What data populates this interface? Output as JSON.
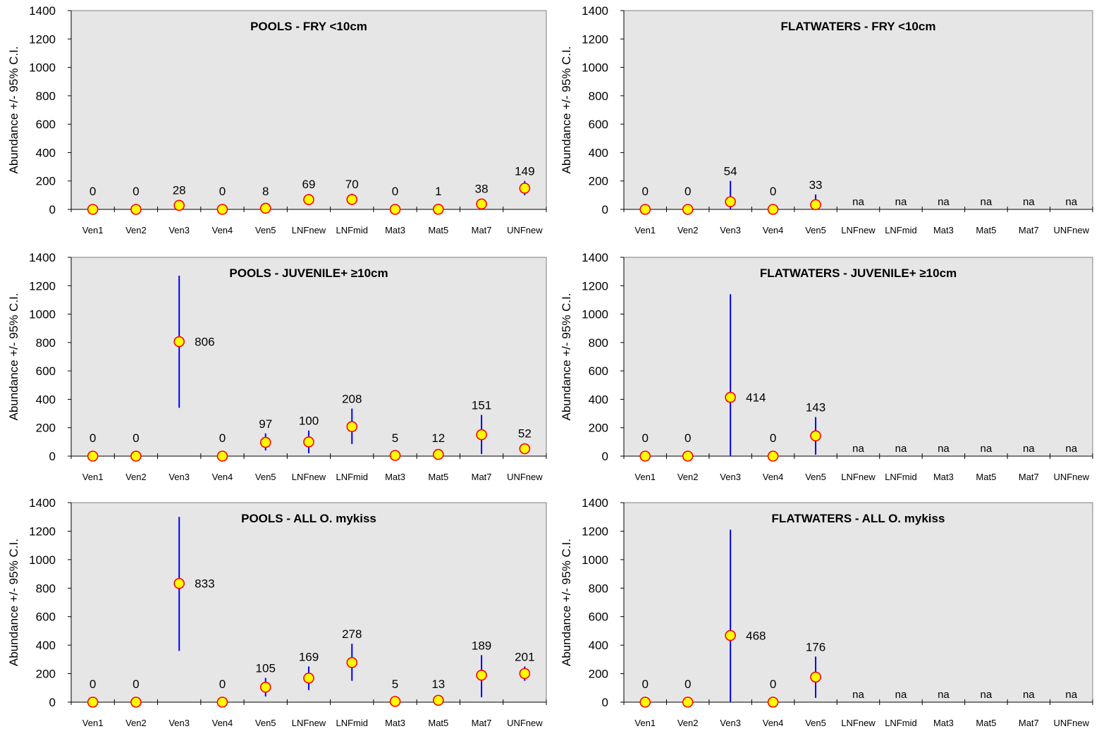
{
  "colors": {
    "plot_bg": "#e6e6e6",
    "error_bar": "#0000ff",
    "marker_fill": "#ffff00",
    "marker_edge": "#ff0000",
    "axis": "#000000"
  },
  "chart_data": [
    {
      "type": "scatter",
      "title": "POOLS - FRY <10cm",
      "ylabel": "Abundance +/- 95% C.I.",
      "ylim": [
        0,
        1400
      ],
      "yticks": [
        0,
        200,
        400,
        600,
        800,
        1000,
        1200,
        1400
      ],
      "categories": [
        "Ven1",
        "Ven2",
        "Ven3",
        "Ven4",
        "Ven5",
        "LNFnew",
        "LNFmid",
        "Mat3",
        "Mat5",
        "Mat7",
        "UNFnew"
      ],
      "values": [
        0,
        0,
        28,
        0,
        8,
        69,
        70,
        0,
        1,
        38,
        149
      ],
      "labels": [
        "0",
        "0",
        "28",
        "0",
        "8",
        "69",
        "70",
        "0",
        "1",
        "38",
        "149"
      ],
      "ci_low": [
        0,
        0,
        10,
        0,
        2,
        55,
        45,
        0,
        0,
        12,
        100
      ],
      "ci_high": [
        0,
        0,
        48,
        0,
        14,
        82,
        110,
        0,
        2,
        72,
        200
      ]
    },
    {
      "type": "scatter",
      "title": "FLATWATERS - FRY <10cm",
      "ylabel": "Abundance +/- 95% C.I.",
      "ylim": [
        0,
        1400
      ],
      "yticks": [
        0,
        200,
        400,
        600,
        800,
        1000,
        1200,
        1400
      ],
      "categories": [
        "Ven1",
        "Ven2",
        "Ven3",
        "Ven4",
        "Ven5",
        "LNFnew",
        "LNFmid",
        "Mat3",
        "Mat5",
        "Mat7",
        "UNFnew"
      ],
      "values": [
        0,
        0,
        54,
        0,
        33,
        null,
        null,
        null,
        null,
        null,
        null
      ],
      "labels": [
        "0",
        "0",
        "54",
        "0",
        "33",
        "na",
        "na",
        "na",
        "na",
        "na",
        "na"
      ],
      "ci_low": [
        0,
        0,
        0,
        0,
        0,
        null,
        null,
        null,
        null,
        null,
        null
      ],
      "ci_high": [
        0,
        0,
        200,
        0,
        105,
        null,
        null,
        null,
        null,
        null,
        null
      ]
    },
    {
      "type": "scatter",
      "title": "POOLS - JUVENILE+ ≥10cm",
      "ylabel": "Abundance +/- 95% C.I.",
      "ylim": [
        0,
        1400
      ],
      "yticks": [
        0,
        200,
        400,
        600,
        800,
        1000,
        1200,
        1400
      ],
      "categories": [
        "Ven1",
        "Ven2",
        "Ven3",
        "Ven4",
        "Ven5",
        "LNFnew",
        "LNFmid",
        "Mat3",
        "Mat5",
        "Mat7",
        "UNFnew"
      ],
      "values": [
        0,
        0,
        806,
        0,
        97,
        100,
        208,
        5,
        12,
        151,
        52
      ],
      "labels": [
        "0",
        "0",
        "806",
        "0",
        "97",
        "100",
        "208",
        "5",
        "12",
        "151",
        "52"
      ],
      "ci_low": [
        0,
        0,
        340,
        0,
        40,
        20,
        85,
        0,
        0,
        15,
        40
      ],
      "ci_high": [
        0,
        0,
        1270,
        0,
        160,
        180,
        335,
        12,
        25,
        290,
        65
      ]
    },
    {
      "type": "scatter",
      "title": "FLATWATERS - JUVENILE+ ≥10cm",
      "ylabel": "Abundance +/- 95% C.I.",
      "ylim": [
        0,
        1400
      ],
      "yticks": [
        0,
        200,
        400,
        600,
        800,
        1000,
        1200,
        1400
      ],
      "categories": [
        "Ven1",
        "Ven2",
        "Ven3",
        "Ven4",
        "Ven5",
        "LNFnew",
        "LNFmid",
        "Mat3",
        "Mat5",
        "Mat7",
        "UNFnew"
      ],
      "values": [
        0,
        0,
        414,
        0,
        143,
        null,
        null,
        null,
        null,
        null,
        null
      ],
      "labels": [
        "0",
        "0",
        "414",
        "0",
        "143",
        "na",
        "na",
        "na",
        "na",
        "na",
        "na"
      ],
      "ci_low": [
        0,
        0,
        0,
        0,
        10,
        null,
        null,
        null,
        null,
        null,
        null
      ],
      "ci_high": [
        0,
        0,
        1140,
        0,
        275,
        null,
        null,
        null,
        null,
        null,
        null
      ]
    },
    {
      "type": "scatter",
      "title": "POOLS - ALL O. mykiss",
      "ylabel": "Abundance +/- 95% C.I.",
      "ylim": [
        0,
        1400
      ],
      "yticks": [
        0,
        200,
        400,
        600,
        800,
        1000,
        1200,
        1400
      ],
      "categories": [
        "Ven1",
        "Ven2",
        "Ven3",
        "Ven4",
        "Ven5",
        "LNFnew",
        "LNFmid",
        "Mat3",
        "Mat5",
        "Mat7",
        "UNFnew"
      ],
      "values": [
        0,
        0,
        833,
        0,
        105,
        169,
        278,
        5,
        13,
        189,
        201
      ],
      "labels": [
        "0",
        "0",
        "833",
        "0",
        "105",
        "169",
        "278",
        "5",
        "13",
        "189",
        "201"
      ],
      "ci_low": [
        0,
        0,
        360,
        0,
        40,
        85,
        150,
        0,
        0,
        35,
        150
      ],
      "ci_high": [
        0,
        0,
        1300,
        0,
        170,
        250,
        410,
        12,
        28,
        330,
        250
      ]
    },
    {
      "type": "scatter",
      "title": "FLATWATERS - ALL O. mykiss",
      "ylabel": "Abundance +/- 95% C.I.",
      "ylim": [
        0,
        1400
      ],
      "yticks": [
        0,
        200,
        400,
        600,
        800,
        1000,
        1200,
        1400
      ],
      "categories": [
        "Ven1",
        "Ven2",
        "Ven3",
        "Ven4",
        "Ven5",
        "LNFnew",
        "LNFmid",
        "Mat3",
        "Mat5",
        "Mat7",
        "UNFnew"
      ],
      "values": [
        0,
        0,
        468,
        0,
        176,
        null,
        null,
        null,
        null,
        null,
        null
      ],
      "labels": [
        "0",
        "0",
        "468",
        "0",
        "176",
        "na",
        "na",
        "na",
        "na",
        "na",
        "na"
      ],
      "ci_low": [
        0,
        0,
        0,
        0,
        30,
        null,
        null,
        null,
        null,
        null,
        null
      ],
      "ci_high": [
        0,
        0,
        1210,
        0,
        320,
        null,
        null,
        null,
        null,
        null,
        null
      ]
    }
  ]
}
